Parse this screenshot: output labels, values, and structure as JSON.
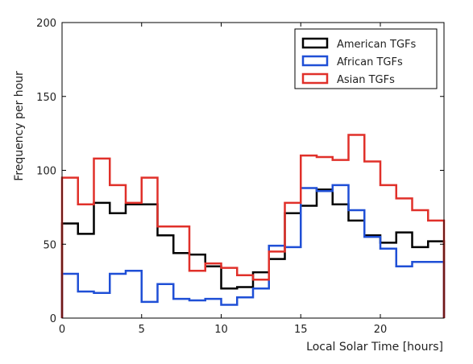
{
  "chart_data": {
    "type": "line",
    "style": "step-histogram",
    "xlabel": "Local Solar Time [hours]",
    "ylabel": "Frequency per hour",
    "xlim": [
      0,
      24
    ],
    "ylim": [
      0,
      200
    ],
    "xticks": [
      "0",
      "5",
      "10",
      "15",
      "20"
    ],
    "xtick_values": [
      0,
      5,
      10,
      15,
      20
    ],
    "yticks": [
      "0",
      "50",
      "100",
      "150",
      "200"
    ],
    "ytick_values": [
      0,
      50,
      100,
      150,
      200
    ],
    "grid": false,
    "legend_position": "top-right",
    "x_bins": [
      0,
      1,
      2,
      3,
      4,
      5,
      6,
      7,
      8,
      9,
      10,
      11,
      12,
      13,
      14,
      15,
      16,
      17,
      18,
      19,
      20,
      21,
      22,
      23
    ],
    "series": [
      {
        "name": "American TGFs",
        "color": "#000000",
        "values": [
          64,
          57,
          78,
          71,
          77,
          77,
          56,
          44,
          43,
          35,
          20,
          21,
          31,
          40,
          71,
          76,
          87,
          77,
          66,
          56,
          51,
          58,
          48,
          52
        ]
      },
      {
        "name": "African TGFs",
        "color": "#1f4fd6",
        "values": [
          30,
          18,
          17,
          30,
          32,
          11,
          23,
          13,
          12,
          13,
          9,
          14,
          20,
          49,
          48,
          88,
          86,
          90,
          73,
          55,
          47,
          35,
          38,
          38
        ]
      },
      {
        "name": "Asian TGFs",
        "color": "#e0302a",
        "values": [
          95,
          77,
          108,
          90,
          78,
          95,
          62,
          62,
          32,
          37,
          34,
          29,
          26,
          45,
          78,
          110,
          109,
          107,
          124,
          106,
          90,
          81,
          73,
          66
        ]
      }
    ]
  }
}
